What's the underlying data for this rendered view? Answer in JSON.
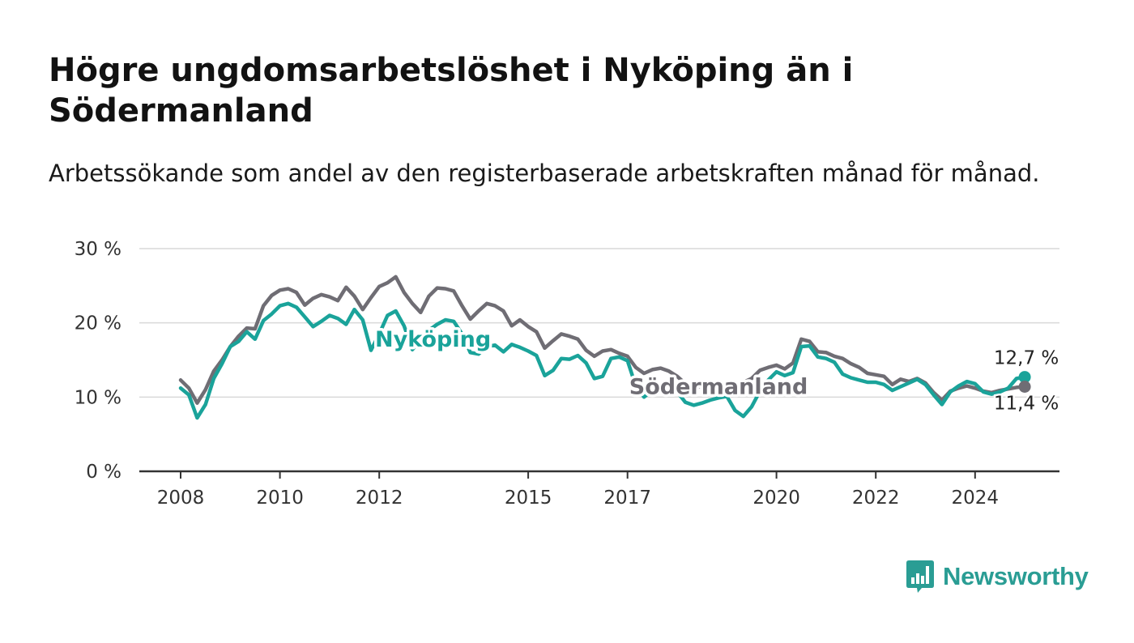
{
  "title": "Högre ungdomsarbetslöshet i Nyköping än i Södermanland",
  "subtitle": "Arbetssökande som andel av den registerbaserade arbetskraften månad för månad.",
  "logo": {
    "text": "Newsworthy",
    "icon": "bar-chart-bubble-icon",
    "color": "#2a9d94"
  },
  "chart_data": {
    "type": "line",
    "x_type": "date",
    "xlim": [
      "2008-01",
      "2025-12"
    ],
    "ylim": [
      0,
      30
    ],
    "y_ticks": [
      {
        "value": 0,
        "label": "0 %"
      },
      {
        "value": 10,
        "label": "10 %"
      },
      {
        "value": 20,
        "label": "20 %"
      },
      {
        "value": 30,
        "label": "30 %"
      }
    ],
    "x_ticks": [
      {
        "value": "2008-01",
        "label": "2008"
      },
      {
        "value": "2010-01",
        "label": "2010"
      },
      {
        "value": "2012-01",
        "label": "2012"
      },
      {
        "value": "2015-01",
        "label": "2015"
      },
      {
        "value": "2017-01",
        "label": "2017"
      },
      {
        "value": "2020-01",
        "label": "2020"
      },
      {
        "value": "2022-01",
        "label": "2022"
      },
      {
        "value": "2024-01",
        "label": "2024"
      }
    ],
    "grid": true,
    "series": [
      {
        "name": "Nyköping",
        "color": "#1aa39a",
        "label_at": {
          "x": "2013-02",
          "y": 17.8
        },
        "end_label": "12,7 %",
        "points": [
          [
            "2008-01",
            11.2
          ],
          [
            "2008-03",
            10.3
          ],
          [
            "2008-05",
            7.2
          ],
          [
            "2008-07",
            9.0
          ],
          [
            "2008-09",
            12.5
          ],
          [
            "2008-11",
            14.5
          ],
          [
            "2009-01",
            16.8
          ],
          [
            "2009-03",
            17.5
          ],
          [
            "2009-05",
            18.8
          ],
          [
            "2009-07",
            17.8
          ],
          [
            "2009-09",
            20.3
          ],
          [
            "2009-11",
            21.2
          ],
          [
            "2010-01",
            22.3
          ],
          [
            "2010-03",
            22.6
          ],
          [
            "2010-05",
            22.1
          ],
          [
            "2010-07",
            20.8
          ],
          [
            "2010-09",
            19.5
          ],
          [
            "2010-11",
            20.2
          ],
          [
            "2011-01",
            21.0
          ],
          [
            "2011-03",
            20.6
          ],
          [
            "2011-05",
            19.8
          ],
          [
            "2011-07",
            21.8
          ],
          [
            "2011-09",
            20.4
          ],
          [
            "2011-11",
            16.3
          ],
          [
            "2012-01",
            18.5
          ],
          [
            "2012-03",
            21.0
          ],
          [
            "2012-05",
            21.6
          ],
          [
            "2012-07",
            19.6
          ],
          [
            "2012-09",
            16.4
          ],
          [
            "2012-11",
            17.7
          ],
          [
            "2013-01",
            19.0
          ],
          [
            "2013-03",
            19.8
          ],
          [
            "2013-05",
            20.4
          ],
          [
            "2013-07",
            20.2
          ],
          [
            "2013-09",
            18.5
          ],
          [
            "2013-11",
            16.0
          ],
          [
            "2014-01",
            15.8
          ],
          [
            "2014-03",
            16.8
          ],
          [
            "2014-05",
            17.0
          ],
          [
            "2014-07",
            16.1
          ],
          [
            "2014-09",
            17.1
          ],
          [
            "2014-11",
            16.7
          ],
          [
            "2015-01",
            16.2
          ],
          [
            "2015-03",
            15.6
          ],
          [
            "2015-05",
            12.9
          ],
          [
            "2015-07",
            13.6
          ],
          [
            "2015-09",
            15.2
          ],
          [
            "2015-11",
            15.1
          ],
          [
            "2016-01",
            15.6
          ],
          [
            "2016-03",
            14.6
          ],
          [
            "2016-05",
            12.5
          ],
          [
            "2016-07",
            12.8
          ],
          [
            "2016-09",
            15.2
          ],
          [
            "2016-11",
            15.4
          ],
          [
            "2017-01",
            14.9
          ],
          [
            "2017-03",
            11.5
          ],
          [
            "2017-05",
            10.0
          ],
          [
            "2017-07",
            10.9
          ],
          [
            "2017-09",
            11.3
          ],
          [
            "2017-11",
            11.6
          ],
          [
            "2018-01",
            10.7
          ],
          [
            "2018-03",
            9.3
          ],
          [
            "2018-05",
            8.9
          ],
          [
            "2018-07",
            9.2
          ],
          [
            "2018-09",
            9.6
          ],
          [
            "2018-11",
            9.9
          ],
          [
            "2019-01",
            10.1
          ],
          [
            "2019-03",
            8.2
          ],
          [
            "2019-05",
            7.4
          ],
          [
            "2019-07",
            8.7
          ],
          [
            "2019-09",
            10.8
          ],
          [
            "2019-11",
            12.3
          ],
          [
            "2020-01",
            13.4
          ],
          [
            "2020-03",
            12.9
          ],
          [
            "2020-05",
            13.3
          ],
          [
            "2020-07",
            16.8
          ],
          [
            "2020-09",
            16.9
          ],
          [
            "2020-11",
            15.4
          ],
          [
            "2021-01",
            15.2
          ],
          [
            "2021-03",
            14.7
          ],
          [
            "2021-05",
            13.1
          ],
          [
            "2021-07",
            12.6
          ],
          [
            "2021-09",
            12.3
          ],
          [
            "2021-11",
            12.0
          ],
          [
            "2022-01",
            12.0
          ],
          [
            "2022-03",
            11.7
          ],
          [
            "2022-05",
            10.9
          ],
          [
            "2022-07",
            11.4
          ],
          [
            "2022-09",
            11.9
          ],
          [
            "2022-11",
            12.4
          ],
          [
            "2023-01",
            11.7
          ],
          [
            "2023-03",
            10.3
          ],
          [
            "2023-05",
            9.0
          ],
          [
            "2023-07",
            10.7
          ],
          [
            "2023-09",
            11.5
          ],
          [
            "2023-11",
            12.1
          ],
          [
            "2024-01",
            11.8
          ],
          [
            "2024-03",
            10.7
          ],
          [
            "2024-05",
            10.4
          ],
          [
            "2024-07",
            10.7
          ],
          [
            "2024-09",
            11.2
          ],
          [
            "2024-11",
            12.5
          ],
          [
            "2025-01",
            12.7
          ]
        ]
      },
      {
        "name": "Södermanland",
        "color": "#6f6d74",
        "label_at": {
          "x": "2018-11",
          "y": 11.4
        },
        "end_label": "11,4 %",
        "points": [
          [
            "2008-01",
            12.3
          ],
          [
            "2008-03",
            11.2
          ],
          [
            "2008-05",
            9.2
          ],
          [
            "2008-07",
            11.0
          ],
          [
            "2008-09",
            13.5
          ],
          [
            "2008-11",
            15.0
          ],
          [
            "2009-01",
            16.8
          ],
          [
            "2009-03",
            18.2
          ],
          [
            "2009-05",
            19.3
          ],
          [
            "2009-07",
            19.2
          ],
          [
            "2009-09",
            22.3
          ],
          [
            "2009-11",
            23.7
          ],
          [
            "2010-01",
            24.4
          ],
          [
            "2010-03",
            24.6
          ],
          [
            "2010-05",
            24.1
          ],
          [
            "2010-07",
            22.4
          ],
          [
            "2010-09",
            23.3
          ],
          [
            "2010-11",
            23.8
          ],
          [
            "2011-01",
            23.5
          ],
          [
            "2011-03",
            23.0
          ],
          [
            "2011-05",
            24.8
          ],
          [
            "2011-07",
            23.6
          ],
          [
            "2011-09",
            21.8
          ],
          [
            "2011-11",
            23.4
          ],
          [
            "2012-01",
            24.9
          ],
          [
            "2012-03",
            25.4
          ],
          [
            "2012-05",
            26.2
          ],
          [
            "2012-07",
            24.1
          ],
          [
            "2012-09",
            22.6
          ],
          [
            "2012-11",
            21.4
          ],
          [
            "2013-01",
            23.6
          ],
          [
            "2013-03",
            24.7
          ],
          [
            "2013-05",
            24.6
          ],
          [
            "2013-07",
            24.3
          ],
          [
            "2013-09",
            22.3
          ],
          [
            "2013-11",
            20.5
          ],
          [
            "2014-01",
            21.6
          ],
          [
            "2014-03",
            22.6
          ],
          [
            "2014-05",
            22.3
          ],
          [
            "2014-07",
            21.6
          ],
          [
            "2014-09",
            19.6
          ],
          [
            "2014-11",
            20.4
          ],
          [
            "2015-01",
            19.5
          ],
          [
            "2015-03",
            18.8
          ],
          [
            "2015-05",
            16.6
          ],
          [
            "2015-07",
            17.6
          ],
          [
            "2015-09",
            18.5
          ],
          [
            "2015-11",
            18.2
          ],
          [
            "2016-01",
            17.8
          ],
          [
            "2016-03",
            16.3
          ],
          [
            "2016-05",
            15.5
          ],
          [
            "2016-07",
            16.2
          ],
          [
            "2016-09",
            16.4
          ],
          [
            "2016-11",
            15.9
          ],
          [
            "2017-01",
            15.5
          ],
          [
            "2017-03",
            14.0
          ],
          [
            "2017-05",
            13.2
          ],
          [
            "2017-07",
            13.7
          ],
          [
            "2017-09",
            13.9
          ],
          [
            "2017-11",
            13.5
          ],
          [
            "2018-01",
            12.8
          ],
          [
            "2018-03",
            11.8
          ],
          [
            "2018-05",
            11.3
          ],
          [
            "2018-07",
            11.5
          ],
          [
            "2018-09",
            11.4
          ],
          [
            "2018-11",
            11.6
          ],
          [
            "2019-01",
            11.8
          ],
          [
            "2019-03",
            11.6
          ],
          [
            "2019-05",
            12.0
          ],
          [
            "2019-07",
            12.5
          ],
          [
            "2019-09",
            13.6
          ],
          [
            "2019-11",
            14.0
          ],
          [
            "2020-01",
            14.3
          ],
          [
            "2020-03",
            13.8
          ],
          [
            "2020-05",
            14.6
          ],
          [
            "2020-07",
            17.8
          ],
          [
            "2020-09",
            17.5
          ],
          [
            "2020-11",
            16.1
          ],
          [
            "2021-01",
            16.0
          ],
          [
            "2021-03",
            15.5
          ],
          [
            "2021-05",
            15.2
          ],
          [
            "2021-07",
            14.5
          ],
          [
            "2021-09",
            14.0
          ],
          [
            "2021-11",
            13.2
          ],
          [
            "2022-01",
            13.0
          ],
          [
            "2022-03",
            12.8
          ],
          [
            "2022-05",
            11.7
          ],
          [
            "2022-07",
            12.4
          ],
          [
            "2022-09",
            12.1
          ],
          [
            "2022-11",
            12.5
          ],
          [
            "2023-01",
            11.9
          ],
          [
            "2023-03",
            10.6
          ],
          [
            "2023-05",
            9.6
          ],
          [
            "2023-07",
            10.8
          ],
          [
            "2023-09",
            11.2
          ],
          [
            "2023-11",
            11.5
          ],
          [
            "2024-01",
            11.2
          ],
          [
            "2024-03",
            10.8
          ],
          [
            "2024-05",
            10.6
          ],
          [
            "2024-07",
            10.9
          ],
          [
            "2024-09",
            11.1
          ],
          [
            "2024-11",
            11.3
          ],
          [
            "2025-01",
            11.4
          ]
        ]
      }
    ]
  }
}
